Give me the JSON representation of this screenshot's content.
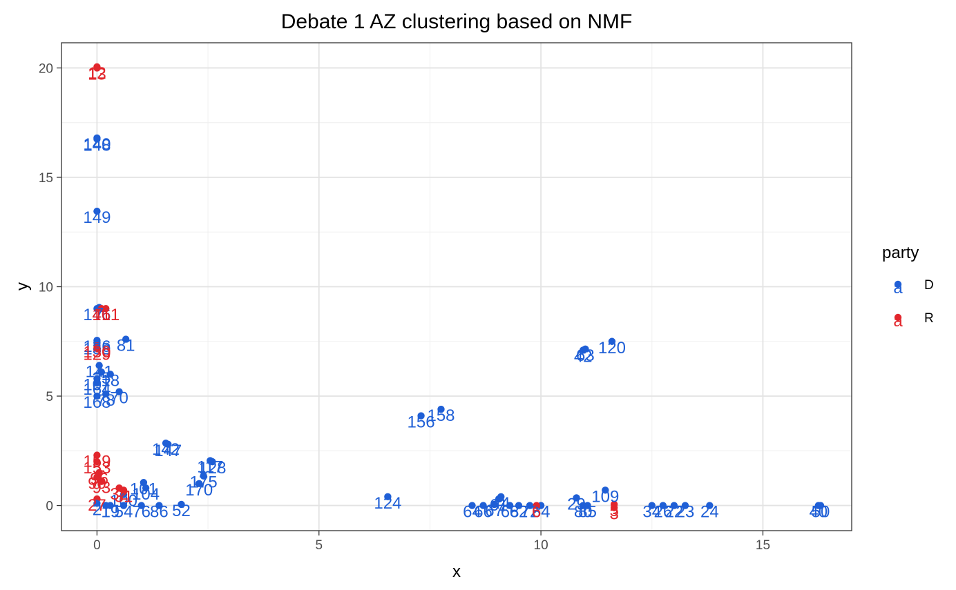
{
  "chart_data": {
    "type": "scatter",
    "title": "Debate 1 AZ clustering based on NMF",
    "xlabel": "x",
    "ylabel": "y",
    "xlim": [
      -0.8,
      17.0
    ],
    "ylim": [
      -1.15,
      21.15
    ],
    "x_ticks": [
      0,
      5,
      10,
      15
    ],
    "y_ticks": [
      0,
      5,
      10,
      15,
      20
    ],
    "grid": true,
    "legend": {
      "title": "party",
      "position": "right",
      "entries": [
        {
          "name": "D",
          "color": "#1f5fd6"
        },
        {
          "name": "R",
          "color": "#e2262c"
        }
      ]
    },
    "colors": {
      "D": "#1f5fd6",
      "R": "#e2262c"
    },
    "points": [
      {
        "x": 0.0,
        "y": 20.05,
        "label": "12",
        "party": "R"
      },
      {
        "x": 0.0,
        "y": 20.0,
        "label": "13",
        "party": "R"
      },
      {
        "x": 0.0,
        "y": 16.8,
        "label": "140",
        "party": "D"
      },
      {
        "x": 0.0,
        "y": 16.75,
        "label": "148",
        "party": "D"
      },
      {
        "x": 0.0,
        "y": 13.45,
        "label": "149",
        "party": "D"
      },
      {
        "x": 0.0,
        "y": 9.0,
        "label": "146",
        "party": "D"
      },
      {
        "x": 0.05,
        "y": 9.05,
        "label": "7",
        "party": "D"
      },
      {
        "x": 0.2,
        "y": 9.0,
        "label": "161",
        "party": "R"
      },
      {
        "x": 0.1,
        "y": 9.0,
        "label": "41",
        "party": "R"
      },
      {
        "x": 0.0,
        "y": 7.55,
        "label": "136",
        "party": "D"
      },
      {
        "x": 0.0,
        "y": 7.45,
        "label": "138",
        "party": "D"
      },
      {
        "x": 0.65,
        "y": 7.6,
        "label": "81",
        "party": "D"
      },
      {
        "x": 0.0,
        "y": 7.3,
        "label": "130",
        "party": "R"
      },
      {
        "x": 0.0,
        "y": 7.2,
        "label": "129",
        "party": "R"
      },
      {
        "x": 0.05,
        "y": 6.4,
        "label": "141",
        "party": "D"
      },
      {
        "x": 0.1,
        "y": 6.1,
        "label": "25",
        "party": "D"
      },
      {
        "x": 0.3,
        "y": 6.0,
        "label": "18",
        "party": "D"
      },
      {
        "x": 0.0,
        "y": 5.8,
        "label": "107",
        "party": "D"
      },
      {
        "x": 0.0,
        "y": 5.6,
        "label": "164",
        "party": "D"
      },
      {
        "x": 0.5,
        "y": 5.2,
        "label": "70",
        "party": "D"
      },
      {
        "x": 0.0,
        "y": 5.0,
        "label": "168",
        "party": "D"
      },
      {
        "x": 0.2,
        "y": 5.1,
        "label": "78",
        "party": "D"
      },
      {
        "x": 7.3,
        "y": 4.1,
        "label": "156",
        "party": "D"
      },
      {
        "x": 7.75,
        "y": 4.4,
        "label": "158",
        "party": "D"
      },
      {
        "x": 10.95,
        "y": 7.1,
        "label": "42",
        "party": "D"
      },
      {
        "x": 11.0,
        "y": 7.15,
        "label": "63",
        "party": "D"
      },
      {
        "x": 11.6,
        "y": 7.5,
        "label": "120",
        "party": "D"
      },
      {
        "x": 1.55,
        "y": 2.85,
        "label": "142",
        "party": "D"
      },
      {
        "x": 1.6,
        "y": 2.8,
        "label": "147",
        "party": "D"
      },
      {
        "x": 2.55,
        "y": 2.05,
        "label": "117",
        "party": "D"
      },
      {
        "x": 2.6,
        "y": 2.0,
        "label": "128",
        "party": "D"
      },
      {
        "x": 2.4,
        "y": 1.35,
        "label": "175",
        "party": "D"
      },
      {
        "x": 2.3,
        "y": 1.0,
        "label": "170",
        "party": "D"
      },
      {
        "x": 0.0,
        "y": 2.3,
        "label": "159",
        "party": "R"
      },
      {
        "x": 0.0,
        "y": 2.0,
        "label": "153",
        "party": "R"
      },
      {
        "x": 0.05,
        "y": 1.5,
        "label": "96",
        "party": "R"
      },
      {
        "x": 0.0,
        "y": 1.3,
        "label": "90",
        "party": "R"
      },
      {
        "x": 0.1,
        "y": 1.1,
        "label": "93",
        "party": "R"
      },
      {
        "x": 1.05,
        "y": 1.05,
        "label": "101",
        "party": "D"
      },
      {
        "x": 1.1,
        "y": 0.8,
        "label": "104",
        "party": "D"
      },
      {
        "x": 0.6,
        "y": 0.5,
        "label": "100",
        "party": "D"
      },
      {
        "x": 0.5,
        "y": 0.8,
        "label": "32",
        "party": "R"
      },
      {
        "x": 0.6,
        "y": 0.7,
        "label": "31",
        "party": "R"
      },
      {
        "x": 0.0,
        "y": 0.3,
        "label": "27",
        "party": "R"
      },
      {
        "x": 0.0,
        "y": 0.1,
        "label": "2",
        "party": "D"
      },
      {
        "x": 0.2,
        "y": 0.0,
        "label": "1",
        "party": "D"
      },
      {
        "x": 0.3,
        "y": 0.0,
        "label": "19",
        "party": "D"
      },
      {
        "x": 0.6,
        "y": 0.0,
        "label": "54",
        "party": "D"
      },
      {
        "x": 1.0,
        "y": 0.0,
        "label": "76",
        "party": "D"
      },
      {
        "x": 1.4,
        "y": 0.0,
        "label": "86",
        "party": "D"
      },
      {
        "x": 1.9,
        "y": 0.05,
        "label": "52",
        "party": "D"
      },
      {
        "x": 6.55,
        "y": 0.4,
        "label": "124",
        "party": "D"
      },
      {
        "x": 8.45,
        "y": 0.0,
        "label": "64",
        "party": "D"
      },
      {
        "x": 8.7,
        "y": 0.0,
        "label": "66",
        "party": "D"
      },
      {
        "x": 8.95,
        "y": 0.05,
        "label": "67",
        "party": "D"
      },
      {
        "x": 9.05,
        "y": 0.3,
        "label": "61",
        "party": "D"
      },
      {
        "x": 9.1,
        "y": 0.4,
        "label": "44",
        "party": "D"
      },
      {
        "x": 9.3,
        "y": 0.0,
        "label": "68",
        "party": "D"
      },
      {
        "x": 9.5,
        "y": 0.0,
        "label": "62",
        "party": "D"
      },
      {
        "x": 9.75,
        "y": 0.0,
        "label": "72",
        "party": "D"
      },
      {
        "x": 10.0,
        "y": 0.0,
        "label": "84",
        "party": "D"
      },
      {
        "x": 9.9,
        "y": 0.0,
        "label": "6",
        "party": "R"
      },
      {
        "x": 10.8,
        "y": 0.35,
        "label": "29",
        "party": "D"
      },
      {
        "x": 10.95,
        "y": 0.0,
        "label": "80",
        "party": "D"
      },
      {
        "x": 11.05,
        "y": 0.0,
        "label": "85",
        "party": "D"
      },
      {
        "x": 11.45,
        "y": 0.7,
        "label": "109",
        "party": "D"
      },
      {
        "x": 11.65,
        "y": 0.05,
        "label": "5",
        "party": "R"
      },
      {
        "x": 11.65,
        "y": -0.1,
        "label": "3",
        "party": "R"
      },
      {
        "x": 12.5,
        "y": 0.0,
        "label": "34",
        "party": "D"
      },
      {
        "x": 12.75,
        "y": 0.0,
        "label": "26",
        "party": "D"
      },
      {
        "x": 13.0,
        "y": 0.0,
        "label": "22",
        "party": "D"
      },
      {
        "x": 13.25,
        "y": 0.0,
        "label": "23",
        "party": "D"
      },
      {
        "x": 13.8,
        "y": 0.0,
        "label": "24",
        "party": "D"
      },
      {
        "x": 16.25,
        "y": 0.0,
        "label": "40",
        "party": "D"
      },
      {
        "x": 16.3,
        "y": 0.0,
        "label": "50",
        "party": "D"
      }
    ]
  }
}
